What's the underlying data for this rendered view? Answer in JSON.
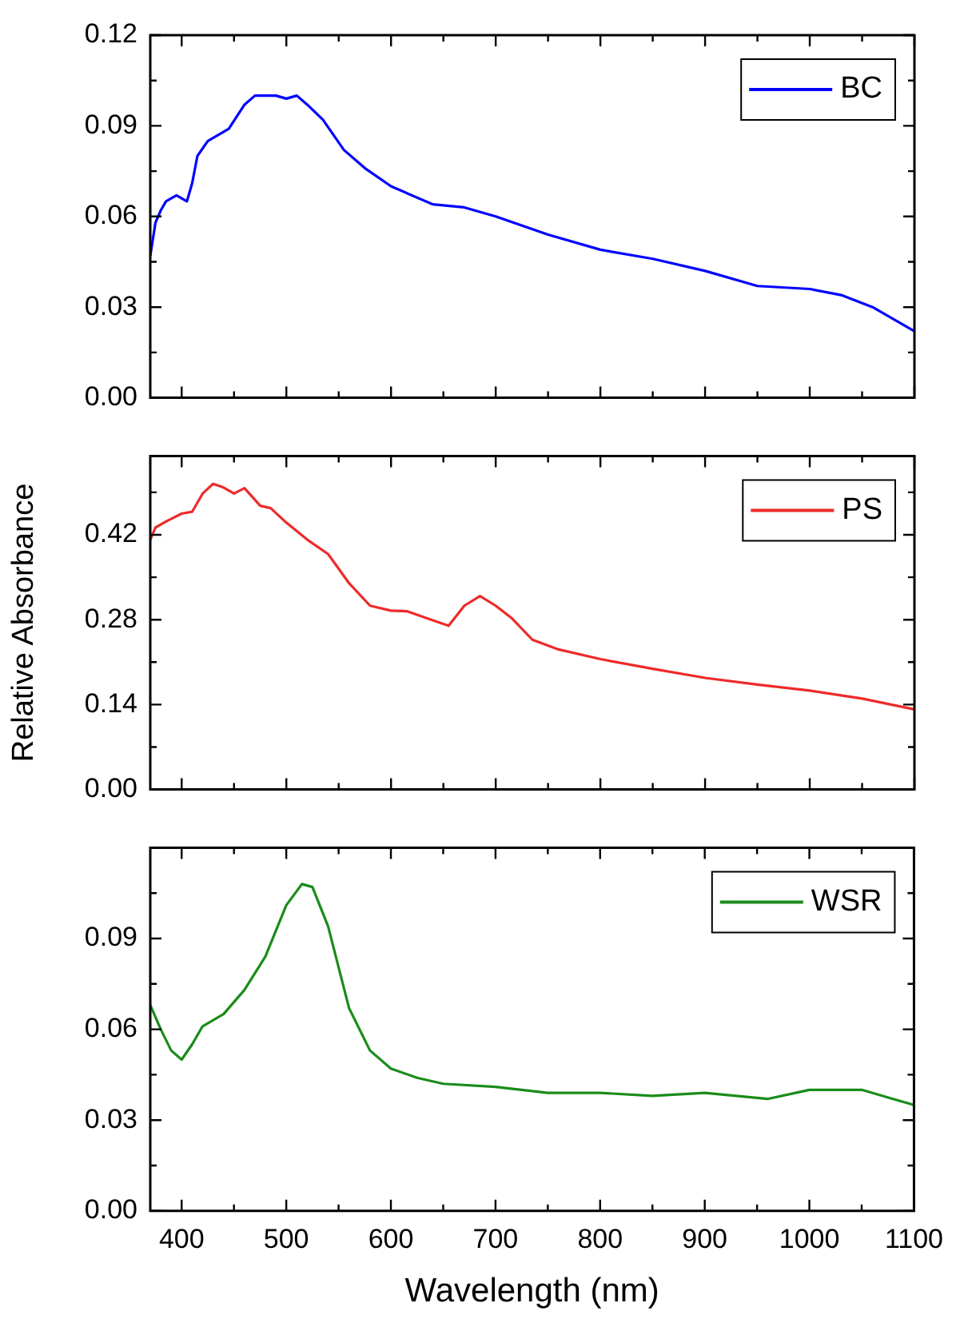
{
  "chart_data": [
    {
      "type": "line",
      "xlim": [
        370,
        1100
      ],
      "xticks": [
        400,
        {
          "value": 450,
          "label": null
        },
        500,
        {
          "value": 550,
          "label": null
        },
        600,
        {
          "value": 650,
          "label": null
        },
        700,
        {
          "value": 750,
          "label": null
        },
        800,
        {
          "value": 850,
          "label": null
        },
        900,
        {
          "value": 950,
          "label": null
        },
        1000,
        {
          "value": 1050,
          "label": null
        },
        1100
      ],
      "ylim": [
        0,
        0.12
      ],
      "yticks": [
        {
          "value": 0,
          "label": "0.00"
        },
        {
          "value": 0.015,
          "label": null
        },
        0.03,
        {
          "value": 0.045,
          "label": null
        },
        0.06,
        {
          "value": 0.075,
          "label": null
        },
        0.09,
        {
          "value": 0.105,
          "label": null
        },
        0.12
      ],
      "tick_labels": "y",
      "legend": "top right",
      "grid": false,
      "series": [
        {
          "name": "BC",
          "color": "#0000ff",
          "x": [
            370,
            375,
            380,
            385,
            395,
            400,
            405,
            410,
            415,
            425,
            445,
            460,
            470,
            490,
            500,
            510,
            520,
            535,
            555,
            575,
            600,
            640,
            670,
            700,
            750,
            800,
            850,
            900,
            950,
            1000,
            1030,
            1060,
            1100
          ],
          "values": [
            0.047,
            0.058,
            0.062,
            0.065,
            0.067,
            0.066,
            0.065,
            0.071,
            0.08,
            0.085,
            0.089,
            0.097,
            0.1,
            0.1,
            0.099,
            0.1,
            0.097,
            0.092,
            0.082,
            0.076,
            0.07,
            0.064,
            0.063,
            0.06,
            0.054,
            0.049,
            0.046,
            0.042,
            0.037,
            0.036,
            0.034,
            0.03,
            0.022
          ]
        }
      ]
    },
    {
      "type": "line",
      "ylabel": "Relative Absorbance",
      "xlim": [
        370,
        1100
      ],
      "xticks": [
        400,
        {
          "value": 450,
          "label": null
        },
        500,
        {
          "value": 550,
          "label": null
        },
        600,
        {
          "value": 650,
          "label": null
        },
        700,
        {
          "value": 750,
          "label": null
        },
        800,
        {
          "value": 850,
          "label": null
        },
        900,
        {
          "value": 950,
          "label": null
        },
        1000,
        {
          "value": 1050,
          "label": null
        },
        1100
      ],
      "ylim": [
        0,
        0.55
      ],
      "yticks": [
        {
          "value": 0,
          "label": "0.00"
        },
        {
          "value": 0.07,
          "label": null
        },
        0.14,
        {
          "value": 0.21,
          "label": null
        },
        0.28,
        {
          "value": 0.35,
          "label": null
        },
        0.42,
        {
          "value": 0.49,
          "label": null
        }
      ],
      "tick_labels": "y",
      "legend": "top right",
      "grid": false,
      "series": [
        {
          "name": "PS",
          "color": "#ee2a2a",
          "x": [
            370,
            375,
            385,
            400,
            410,
            420,
            430,
            440,
            450,
            460,
            475,
            485,
            500,
            520,
            540,
            560,
            580,
            600,
            615,
            640,
            655,
            670,
            685,
            700,
            715,
            735,
            760,
            800,
            850,
            900,
            950,
            1000,
            1050,
            1100
          ],
          "values": [
            0.412,
            0.432,
            0.442,
            0.455,
            0.458,
            0.488,
            0.504,
            0.498,
            0.488,
            0.497,
            0.468,
            0.464,
            0.44,
            0.412,
            0.388,
            0.34,
            0.303,
            0.295,
            0.294,
            0.279,
            0.27,
            0.303,
            0.319,
            0.303,
            0.283,
            0.247,
            0.231,
            0.215,
            0.199,
            0.184,
            0.173,
            0.163,
            0.15,
            0.132
          ]
        }
      ]
    },
    {
      "type": "line",
      "xlabel": "Wavelength (nm)",
      "xlim": [
        370,
        1100
      ],
      "xticks": [
        400,
        {
          "value": 450,
          "label": null
        },
        500,
        {
          "value": 550,
          "label": null
        },
        600,
        {
          "value": 650,
          "label": null
        },
        700,
        {
          "value": 750,
          "label": null
        },
        800,
        {
          "value": 850,
          "label": null
        },
        900,
        {
          "value": 950,
          "label": null
        },
        1000,
        {
          "value": 1050,
          "label": null
        },
        1100
      ],
      "ylim": [
        0,
        0.12
      ],
      "yticks": [
        {
          "value": 0,
          "label": "0.00"
        },
        {
          "value": 0.015,
          "label": null
        },
        0.03,
        {
          "value": 0.045,
          "label": null
        },
        0.06,
        {
          "value": 0.075,
          "label": null
        },
        0.09,
        {
          "value": 0.105,
          "label": null
        }
      ],
      "legend": "top right",
      "grid": false,
      "series": [
        {
          "name": "WSR",
          "color": "#1a8c1a",
          "x": [
            370,
            380,
            390,
            400,
            410,
            420,
            440,
            460,
            480,
            500,
            515,
            525,
            540,
            560,
            580,
            600,
            625,
            650,
            700,
            750,
            800,
            850,
            900,
            960,
            1000,
            1050,
            1080,
            1100
          ],
          "values": [
            0.068,
            0.06,
            0.053,
            0.05,
            0.055,
            0.061,
            0.065,
            0.073,
            0.084,
            0.101,
            0.108,
            0.107,
            0.094,
            0.067,
            0.053,
            0.047,
            0.044,
            0.042,
            0.041,
            0.039,
            0.039,
            0.038,
            0.039,
            0.037,
            0.04,
            0.04,
            0.037,
            0.035
          ]
        }
      ]
    }
  ]
}
